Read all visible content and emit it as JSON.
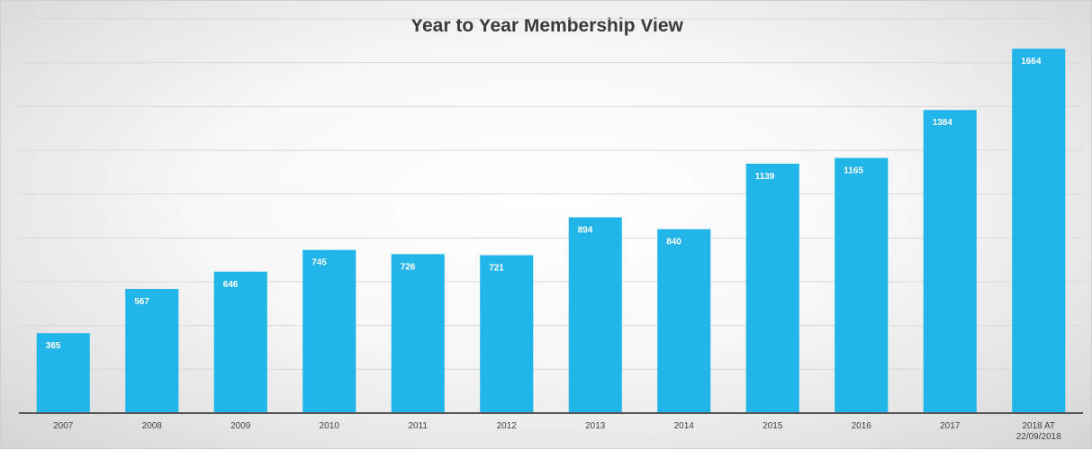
{
  "chart_data": {
    "type": "bar",
    "title": "Year to Year Membership View",
    "xlabel": "",
    "ylabel": "",
    "categories": [
      "2007",
      "2008",
      "2009",
      "2010",
      "2011",
      "2012",
      "2013",
      "2014",
      "2015",
      "2016",
      "2017",
      "2018 AT 22/09/2018"
    ],
    "values": [
      365,
      567,
      646,
      745,
      726,
      721,
      894,
      840,
      1139,
      1165,
      1384,
      1664
    ],
    "ylim": [
      0,
      1800
    ],
    "grid": true,
    "gridline_step": 200,
    "legend": "none",
    "colors": {
      "bar": "#22b5ea",
      "bar_label": "#ffffff",
      "axis": "#555555",
      "grid": "#d9d9d9"
    }
  }
}
